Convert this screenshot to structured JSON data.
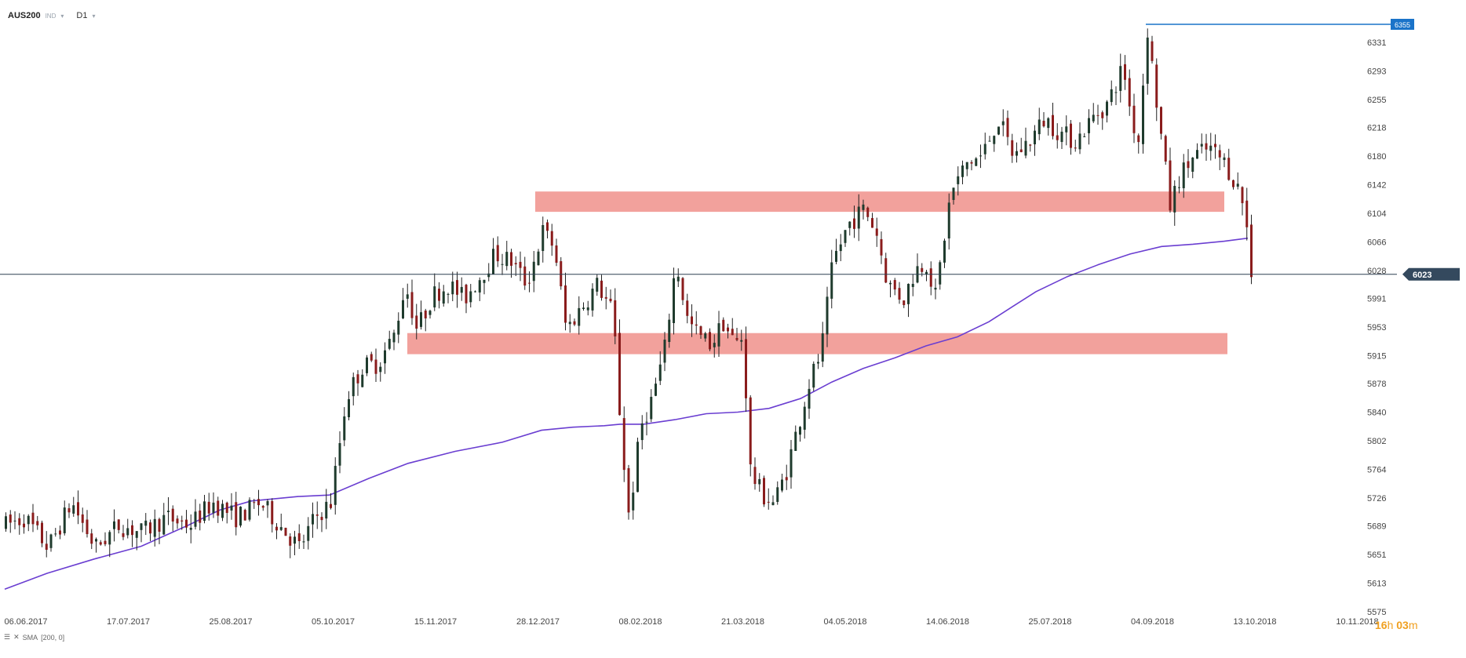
{
  "header": {
    "symbol": "AUS200",
    "type_badge": "IND",
    "timeframe": "D1"
  },
  "indicator": {
    "label": "SMA",
    "params": "[200, 0]",
    "color": "#6a3ed1"
  },
  "countdown": {
    "hours": "16",
    "h_unit": "h",
    "minutes": "03",
    "m_unit": "m"
  },
  "colors": {
    "bull": "#1f3b2d",
    "bear": "#8a1c1c",
    "wick": "#222222",
    "zone": "#f19c97",
    "last_price_line": "#2c3e50",
    "high_marker": "#1a73c9"
  },
  "chart_data": {
    "type": "candlestick",
    "x_labels": [
      "06.06.2017",
      "17.07.2017",
      "25.08.2017",
      "05.10.2017",
      "15.11.2017",
      "28.12.2017",
      "08.02.2018",
      "21.03.2018",
      "04.05.2018",
      "14.06.2018",
      "25.07.2018",
      "04.09.2018",
      "13.10.2018",
      "10.11.2018"
    ],
    "y_ticks": [
      6331,
      6293,
      6255,
      6218,
      6180,
      6142,
      6104,
      6066,
      6028,
      5991,
      5953,
      5915,
      5878,
      5840,
      5802,
      5764,
      5726,
      5689,
      5651,
      5613,
      5575
    ],
    "y_range": [
      5575,
      6370
    ],
    "last_price": 6023,
    "high_marker": 6355,
    "zones": [
      {
        "top": 6133,
        "bottom": 6106
      },
      {
        "top": 5945,
        "bottom": 5917
      }
    ],
    "sma_period": 200
  }
}
